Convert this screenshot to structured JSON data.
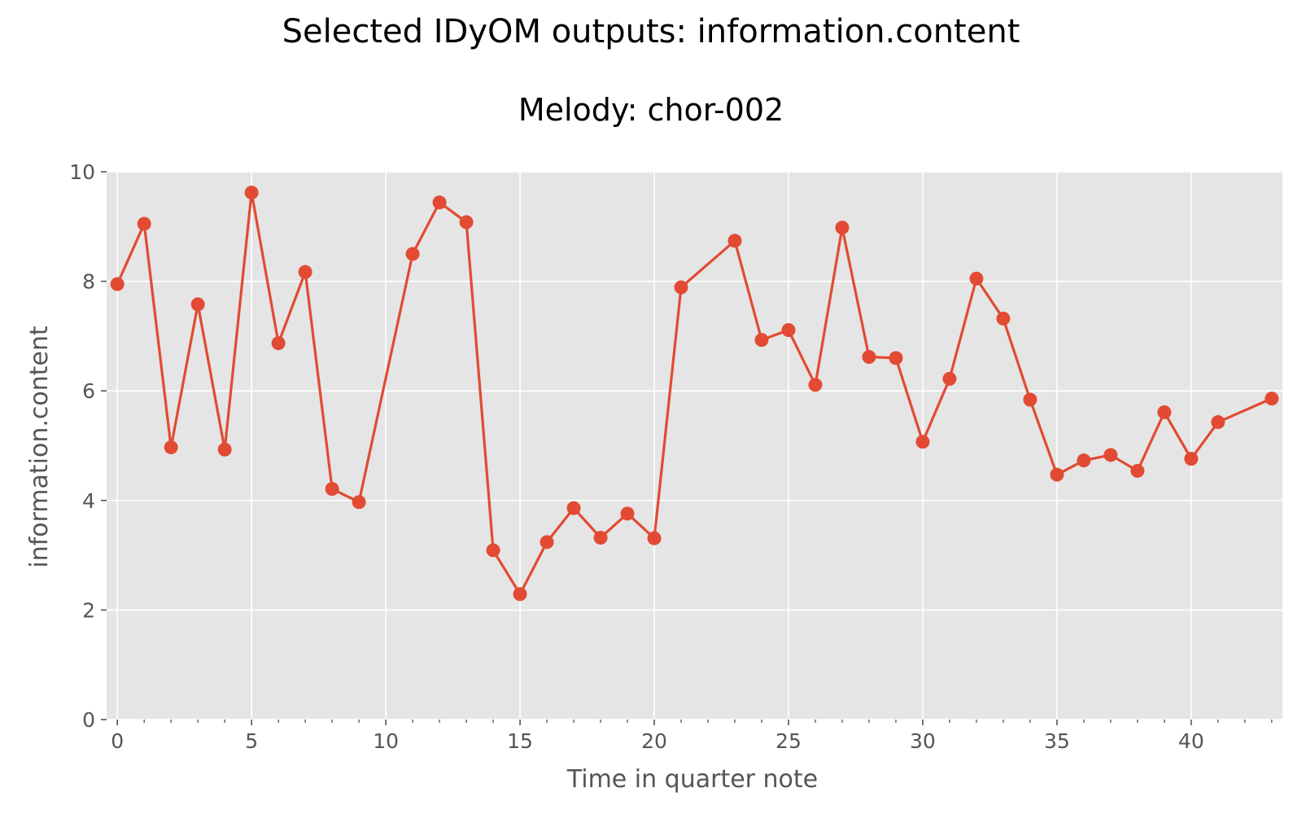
{
  "figure": {
    "suptitle": "Selected IDyOM outputs: information.content"
  },
  "colors": {
    "plot_background": "#e5e5e5",
    "grid": "#ffffff",
    "line": "#e24a33",
    "tick_text": "#555555"
  },
  "chart_data": {
    "type": "line",
    "title": "Melody: chor-002",
    "xlabel": "Time in quarter note",
    "ylabel": "information.content",
    "xlim": [
      -0.4,
      43.4
    ],
    "ylim": [
      0,
      10
    ],
    "xticks": [
      0,
      5,
      10,
      15,
      20,
      25,
      30,
      35,
      40
    ],
    "xticks_minor": [
      1,
      2,
      3,
      4,
      6,
      7,
      8,
      9,
      11,
      12,
      13,
      14,
      16,
      17,
      18,
      19,
      21,
      22,
      23,
      24,
      26,
      27,
      28,
      29,
      31,
      32,
      33,
      34,
      36,
      37,
      38,
      39,
      41,
      42,
      43
    ],
    "yticks": [
      0,
      2,
      4,
      6,
      8,
      10
    ],
    "grid": true,
    "marker": "circle",
    "series": [
      {
        "x": [
          0,
          1,
          2,
          3,
          4,
          5,
          6,
          7,
          8,
          9,
          11,
          12,
          13,
          14,
          15,
          16,
          17,
          18,
          19,
          20,
          21,
          23,
          24,
          25,
          26,
          27,
          28,
          29,
          30,
          31,
          32,
          33,
          34,
          35,
          36,
          37,
          38,
          39,
          40,
          41,
          43
        ],
        "y": [
          7.95,
          9.05,
          4.97,
          7.58,
          4.93,
          9.62,
          6.87,
          8.17,
          4.21,
          3.97,
          8.5,
          9.44,
          9.08,
          3.09,
          2.29,
          3.24,
          3.86,
          3.32,
          3.76,
          3.31,
          7.89,
          8.74,
          6.93,
          7.11,
          6.11,
          8.98,
          6.62,
          6.6,
          5.07,
          6.22,
          8.05,
          7.32,
          5.84,
          4.47,
          4.73,
          4.83,
          4.54,
          5.61,
          4.76,
          5.43,
          5.86
        ]
      }
    ]
  }
}
